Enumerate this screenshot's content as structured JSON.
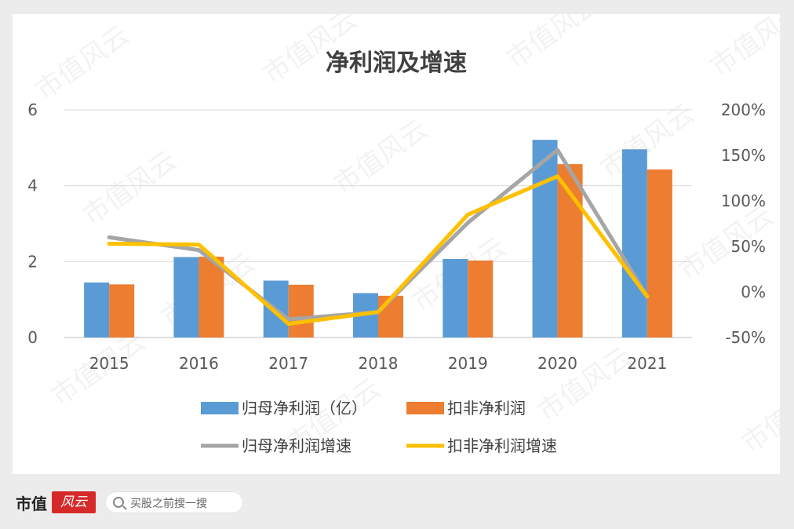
{
  "chart_data": {
    "type": "bar",
    "title": "净利润及增速",
    "categories": [
      "2015",
      "2016",
      "2017",
      "2018",
      "2019",
      "2020",
      "2021"
    ],
    "series": [
      {
        "name": "归母净利润（亿）",
        "kind": "bar",
        "axis": "left",
        "color": "#5b9bd5",
        "values": [
          1.45,
          2.12,
          1.5,
          1.17,
          2.07,
          5.21,
          4.96
        ]
      },
      {
        "name": "扣非净利润",
        "kind": "bar",
        "axis": "left",
        "color": "#ed7d31",
        "values": [
          1.4,
          2.13,
          1.39,
          1.1,
          2.03,
          4.57,
          4.43
        ]
      },
      {
        "name": "归母净利润增速",
        "kind": "line",
        "axis": "right",
        "color": "#a5a5a5",
        "values": [
          60,
          46,
          -30,
          -22,
          76,
          156,
          -5
        ]
      },
      {
        "name": "扣非净利润增速",
        "kind": "line",
        "axis": "right",
        "color": "#ffc000",
        "values": [
          53,
          52,
          -35,
          -22,
          85,
          127,
          -5
        ]
      }
    ],
    "y_left": {
      "min": 0,
      "max": 6,
      "ticks": [
        "0",
        "2",
        "4",
        "6"
      ]
    },
    "y_right": {
      "min": -50,
      "max": 200,
      "ticks": [
        "-50%",
        "0%",
        "50%",
        "100%",
        "150%",
        "200%"
      ]
    },
    "grid": true,
    "legend_position": "bottom"
  },
  "watermark": "市值风云",
  "footer": {
    "brand": "市值",
    "brand_script": "风云",
    "search_placeholder": "买股之前搜一搜",
    "search_icon": "search-icon"
  }
}
